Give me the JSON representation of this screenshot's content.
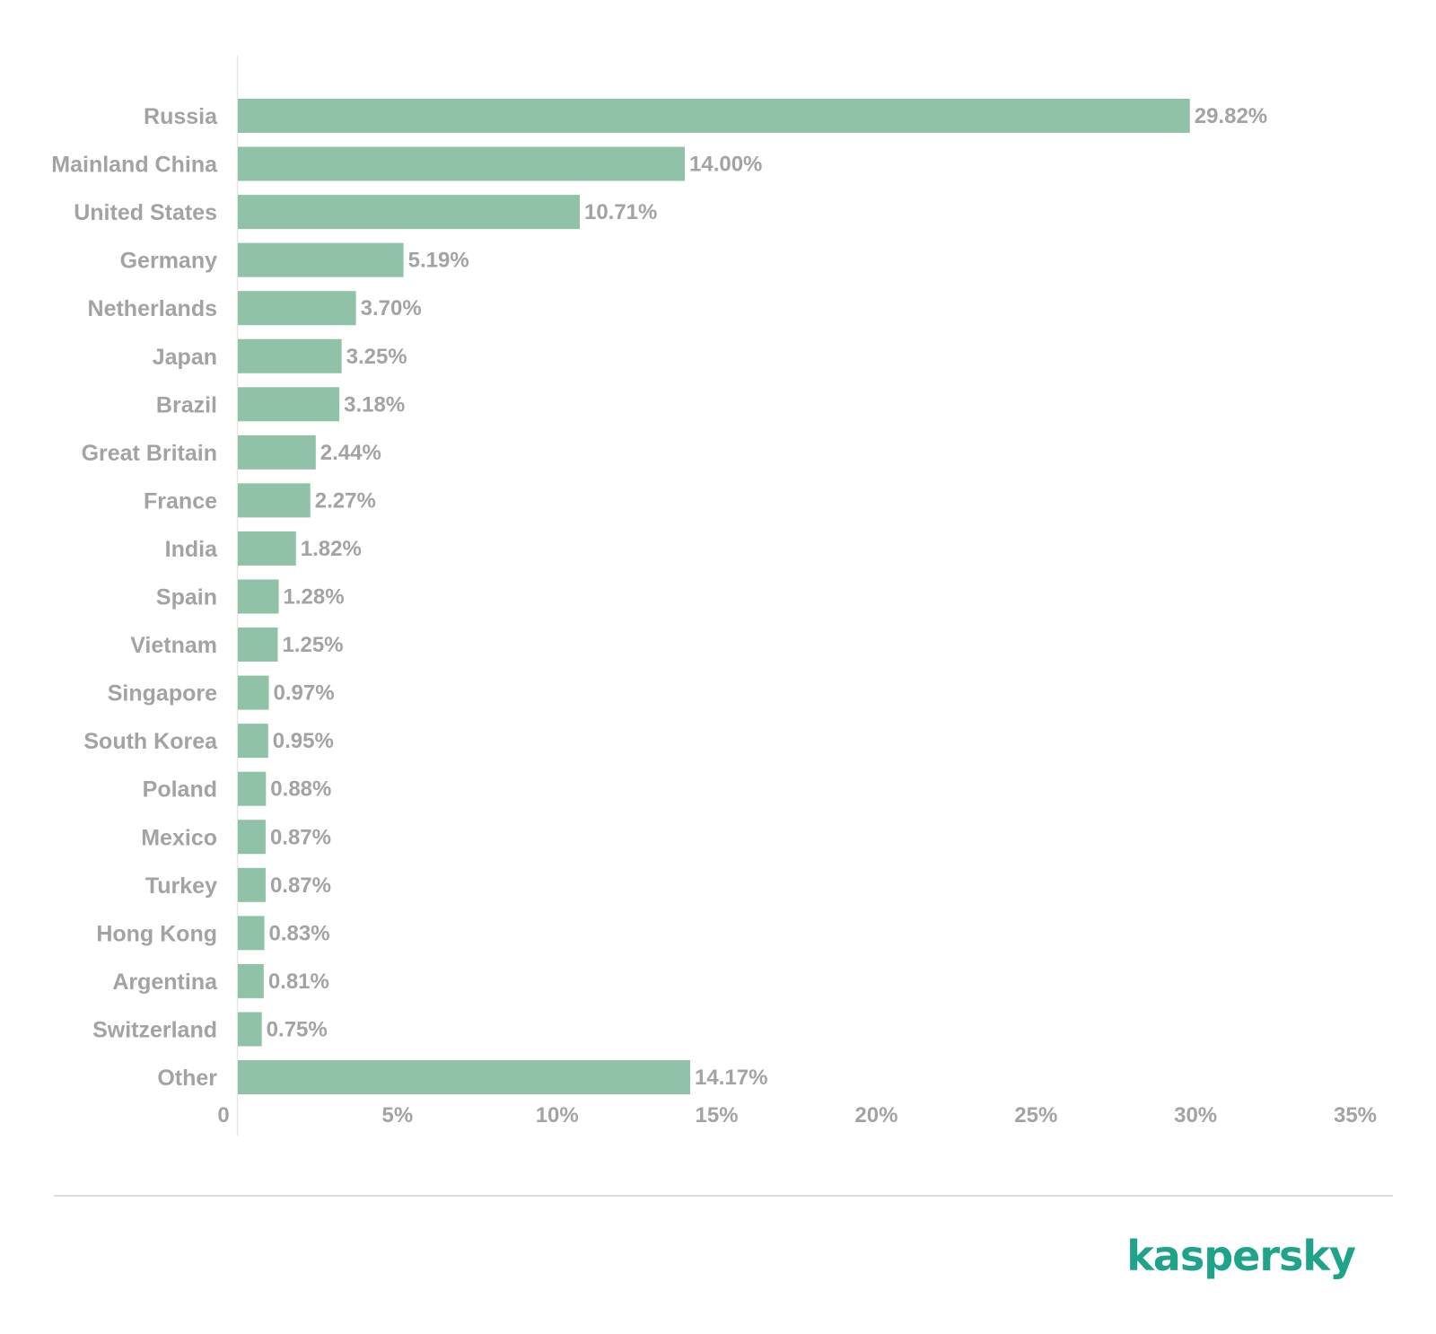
{
  "chart_data": {
    "type": "bar",
    "orientation": "horizontal",
    "categories": [
      "Russia",
      "Mainland China",
      "United States",
      "Germany",
      "Netherlands",
      "Japan",
      "Brazil",
      "Great Britain",
      "France",
      "India",
      "Spain",
      "Vietnam",
      "Singapore",
      "South Korea",
      "Poland",
      "Mexico",
      "Turkey",
      "Hong Kong",
      "Argentina",
      "Switzerland",
      "Other"
    ],
    "values": [
      29.82,
      14.0,
      10.71,
      5.19,
      3.7,
      3.25,
      3.18,
      2.44,
      2.27,
      1.82,
      1.28,
      1.25,
      0.97,
      0.95,
      0.88,
      0.87,
      0.87,
      0.83,
      0.81,
      0.75,
      14.17
    ],
    "value_labels": [
      "29.82%",
      "14.00%",
      "10.71%",
      "5.19%",
      "3.70%",
      "3.25%",
      "3.18%",
      "2.44%",
      "2.27%",
      "1.82%",
      "1.28%",
      "1.25%",
      "0.97%",
      "0.95%",
      "0.88%",
      "0.87%",
      "0.87%",
      "0.83%",
      "0.81%",
      "0.75%",
      "14.17%"
    ],
    "xlim": [
      0,
      35
    ],
    "x_ticks": [
      0,
      5,
      10,
      15,
      20,
      25,
      30,
      35
    ],
    "x_tick_labels": [
      "0",
      "5%",
      "10%",
      "15%",
      "20%",
      "25%",
      "30%",
      "35%"
    ],
    "title": "",
    "xlabel": "",
    "ylabel": "",
    "grid": false,
    "legend": "none"
  },
  "colors": {
    "bar": "#8fc2a6",
    "label_text": "#a3a3a3",
    "axis_line": "#e6e6e6",
    "brand": "#1fa38a"
  },
  "brand": {
    "logo_text": "kaspersky"
  }
}
